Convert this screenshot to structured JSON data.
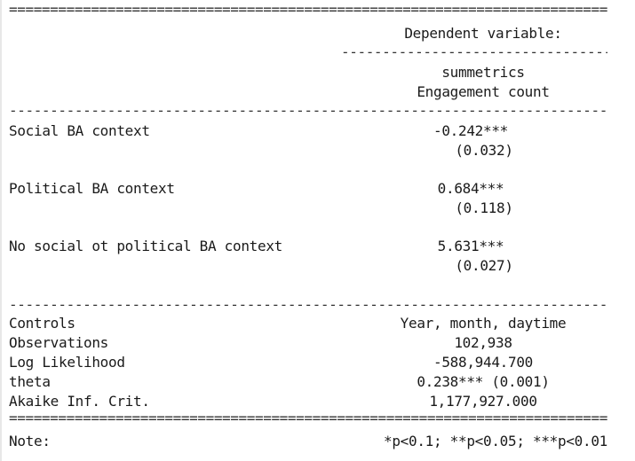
{
  "table": {
    "dep_var_header": "Dependent variable:",
    "dep_var_name": "summetrics",
    "dep_var_label": "Engagement count",
    "rows": [
      {
        "label": "Social BA context",
        "coef": "-0.242***",
        "se": "(0.032)"
      },
      {
        "label": "Political BA context",
        "coef": "0.684***",
        "se": "(0.118)"
      },
      {
        "label": "No social ot political BA context",
        "coef": "5.631***",
        "se": "(0.027)"
      }
    ],
    "stats": [
      {
        "label": "Controls",
        "value": "Year, month, daytime"
      },
      {
        "label": "Observations",
        "value": "102,938"
      },
      {
        "label": "Log Likelihood",
        "value": "-588,944.700"
      },
      {
        "label": "theta",
        "value": "0.238*** (0.001)"
      },
      {
        "label": "Akaike Inf. Crit.",
        "value": "1,177,927.000"
      }
    ],
    "note_label": "Note:",
    "note_text": "*p<0.1; **p<0.05; ***p<0.01"
  }
}
